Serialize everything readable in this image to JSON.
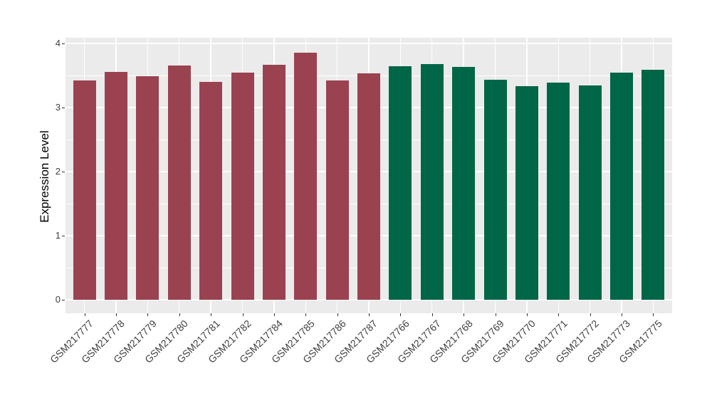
{
  "colors": {
    "figure_background": "#ffffff",
    "panel_background": "#ebebeb",
    "gridline": "#ffffff",
    "tick_mark": "#333333",
    "axis_text": "#404040",
    "axis_title": "#000000",
    "group_left_bar": "#9b4250",
    "group_right_bar": "#006648"
  },
  "chart_data": {
    "type": "bar",
    "title": "",
    "xlabel": "",
    "ylabel": "Expression Level",
    "ylim": [
      0,
      4
    ],
    "yticks": [
      0,
      1,
      2,
      3,
      4
    ],
    "minor_gridlines": [
      0.5,
      1.5,
      2.5,
      3.5
    ],
    "grid": true,
    "legend_position": "none",
    "series": [
      {
        "color": "#9b4250",
        "categories": [
          "GSM217777",
          "GSM217778",
          "GSM217779",
          "GSM217780",
          "GSM217781",
          "GSM217782",
          "GSM217784",
          "GSM217785",
          "GSM217786",
          "GSM217787"
        ],
        "values": [
          3.42,
          3.56,
          3.49,
          3.66,
          3.4,
          3.54,
          3.67,
          3.86,
          3.42,
          3.53
        ]
      },
      {
        "color": "#006648",
        "categories": [
          "GSM217766",
          "GSM217767",
          "GSM217768",
          "GSM217769",
          "GSM217770",
          "GSM217771",
          "GSM217772",
          "GSM217773",
          "GSM217775"
        ],
        "values": [
          3.65,
          3.68,
          3.63,
          3.43,
          3.33,
          3.39,
          3.35,
          3.55,
          3.59
        ]
      }
    ]
  }
}
